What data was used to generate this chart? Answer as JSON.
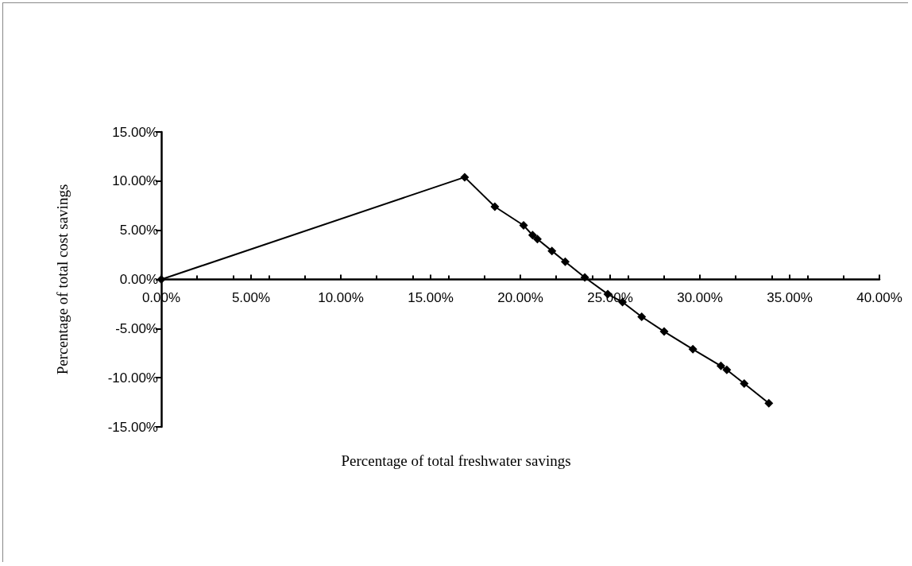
{
  "chart_data": {
    "type": "line",
    "xlabel": "Percentage of total freshwater savings",
    "ylabel": "Percentage of total cost savings",
    "x": [
      0,
      16.9,
      18.58,
      20.18,
      20.68,
      20.95,
      21.76,
      22.5,
      23.59,
      24.87,
      25.69,
      26.76,
      28.01,
      29.61,
      31.17,
      31.5,
      32.47,
      33.84
    ],
    "series": [
      {
        "color": "#000000",
        "values": [
          0,
          10.4,
          7.4,
          5.5,
          4.5,
          4.1,
          2.9,
          1.8,
          0.2,
          -1.5,
          -2.3,
          -3.8,
          -5.3,
          -7.1,
          -8.8,
          -9.2,
          -10.6,
          -12.6
        ]
      }
    ],
    "xlim": [
      0,
      40
    ],
    "xticks": [
      {
        "value": 0,
        "label": "0.00%"
      },
      {
        "value": 5,
        "label": "5.00%"
      },
      {
        "value": 10,
        "label": "10.00%"
      },
      {
        "value": 15,
        "label": "15.00%"
      },
      {
        "value": 20,
        "label": "20.00%"
      },
      {
        "value": 25,
        "label": "25.00%"
      },
      {
        "value": 30,
        "label": "30.00%"
      },
      {
        "value": 35,
        "label": "35.00%"
      },
      {
        "value": 40,
        "label": "40.00%"
      }
    ],
    "ylim": [
      -15,
      15
    ],
    "yticks": [
      {
        "value": -15,
        "label": "-15.00%"
      },
      {
        "value": -10,
        "label": "-10.00%"
      },
      {
        "value": -5,
        "label": "-5.00%"
      },
      {
        "value": 0,
        "label": "0.00%"
      },
      {
        "value": 5,
        "label": "5.00%"
      },
      {
        "value": 10,
        "label": "10.00%"
      },
      {
        "value": 15,
        "label": "15.00%"
      }
    ],
    "marker": "diamond",
    "line_style": "solid"
  }
}
